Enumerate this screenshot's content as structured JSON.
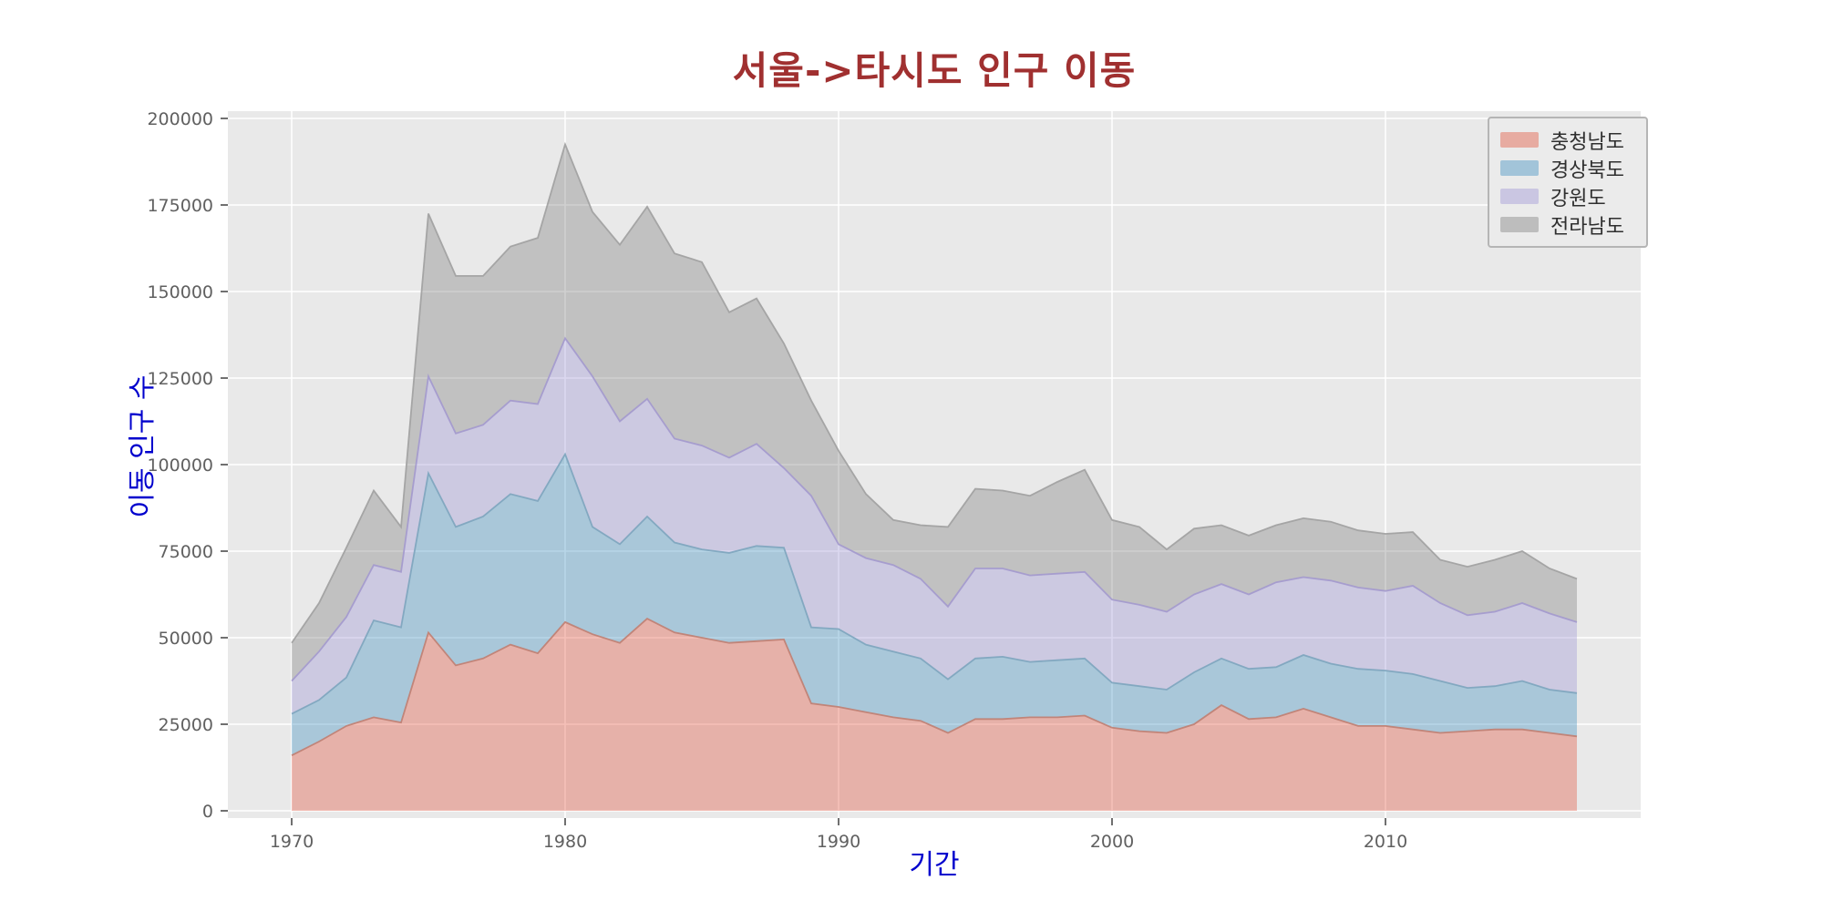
{
  "figure": {
    "background": "#ffffff",
    "plot_background": "#e9e9e9",
    "grid_color": "#ffffff"
  },
  "title": {
    "text": "서울->타시도 인구 이동",
    "color": "#a03030"
  },
  "axes": {
    "x_label": "기간",
    "y_label": "이동 인구 수",
    "label_color": "#0000cd",
    "tick_color": "#606060",
    "x_ticks": [
      "1970",
      "1980",
      "1990",
      "2000",
      "2010"
    ],
    "y_ticks": [
      "0",
      "25000",
      "50000",
      "75000",
      "100000",
      "125000",
      "150000",
      "175000",
      "200000"
    ]
  },
  "legend": {
    "items": [
      {
        "label": "충청남도",
        "color": "#E24A33"
      },
      {
        "label": "경상북도",
        "color": "#348ABD"
      },
      {
        "label": "강원도",
        "color": "#988ED5"
      },
      {
        "label": "전라남도",
        "color": "#777777"
      }
    ]
  },
  "chart_data": {
    "type": "area",
    "stacked": true,
    "title": "서울->타시도 인구 이동",
    "xlabel": "기간",
    "ylabel": "이동 인구 수",
    "x_range": [
      1970,
      2017
    ],
    "ylim": [
      0,
      200000
    ],
    "grid": true,
    "legend_position": "upper right",
    "fill_opacity": 0.35,
    "x": [
      1970,
      1971,
      1972,
      1973,
      1974,
      1975,
      1976,
      1977,
      1978,
      1979,
      1980,
      1981,
      1982,
      1983,
      1984,
      1985,
      1986,
      1987,
      1988,
      1989,
      1990,
      1991,
      1992,
      1993,
      1994,
      1995,
      1996,
      1997,
      1998,
      1999,
      2000,
      2001,
      2002,
      2003,
      2004,
      2005,
      2006,
      2007,
      2008,
      2009,
      2010,
      2011,
      2012,
      2013,
      2014,
      2015,
      2016,
      2017
    ],
    "series": [
      {
        "name": "충청남도",
        "color": "#E24A33",
        "edge": "#c08275",
        "values": [
          16000,
          20000,
          24500,
          27000,
          25500,
          51500,
          42000,
          44000,
          48000,
          45500,
          54500,
          51000,
          48500,
          55500,
          51500,
          50000,
          48500,
          49000,
          49500,
          31000,
          30000,
          28500,
          27000,
          26000,
          22500,
          26500,
          26500,
          27000,
          27000,
          27500,
          24000,
          23000,
          22500,
          25000,
          30500,
          26500,
          27000,
          29500,
          27000,
          24500,
          24500,
          23500,
          22500,
          23000,
          23500,
          23500,
          22500,
          21500
        ]
      },
      {
        "name": "경상북도",
        "color": "#348ABD",
        "edge": "#7fa6bf",
        "values": [
          12000,
          12000,
          14000,
          28000,
          27500,
          46000,
          40000,
          41000,
          43500,
          44000,
          48500,
          31000,
          28500,
          29500,
          26000,
          25500,
          26000,
          27500,
          26500,
          22000,
          22500,
          19500,
          19000,
          18000,
          15500,
          17500,
          18000,
          16000,
          16500,
          16500,
          13000,
          13000,
          12500,
          15000,
          13500,
          14500,
          14500,
          15500,
          15500,
          16500,
          16000,
          16000,
          15000,
          12500,
          12500,
          14000,
          12500,
          12500
        ]
      },
      {
        "name": "강원도",
        "color": "#988ED5",
        "edge": "#a49bce",
        "values": [
          9500,
          14000,
          17500,
          16000,
          16000,
          28000,
          27000,
          26500,
          27000,
          28000,
          33500,
          43500,
          35500,
          34000,
          30000,
          30000,
          27500,
          29500,
          23000,
          38000,
          24500,
          25000,
          25000,
          23000,
          21000,
          26000,
          25500,
          25000,
          25000,
          25000,
          24000,
          23500,
          22500,
          22500,
          21500,
          21500,
          24500,
          22500,
          24000,
          23500,
          23000,
          25500,
          22500,
          21000,
          21500,
          22500,
          22000,
          20500
        ]
      },
      {
        "name": "전라남도",
        "color": "#777777",
        "edge": "#a2a2a2",
        "values": [
          11000,
          14000,
          20000,
          21500,
          13000,
          47000,
          45500,
          43000,
          44500,
          48000,
          56000,
          47500,
          51000,
          55500,
          53500,
          53000,
          42000,
          42000,
          36000,
          27500,
          27000,
          18500,
          13000,
          15500,
          23000,
          23000,
          22500,
          23000,
          26500,
          29500,
          23000,
          22500,
          18000,
          19000,
          17000,
          17000,
          16500,
          17000,
          17000,
          16500,
          16500,
          15500,
          12500,
          14000,
          15000,
          15000,
          13000,
          12500
        ]
      }
    ]
  }
}
